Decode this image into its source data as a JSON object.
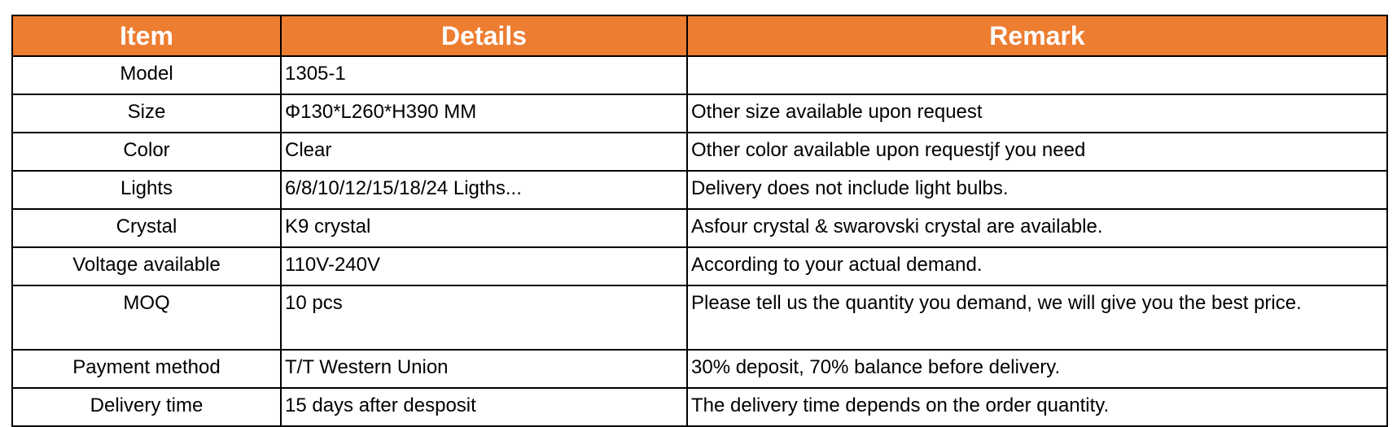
{
  "header": {
    "item": "Item",
    "details": "Details",
    "remark": "Remark"
  },
  "accent_color": "#ED7D31",
  "rows": [
    {
      "item": "Model",
      "details": "1305-1",
      "remark": ""
    },
    {
      "item": "Size",
      "details": "Φ130*L260*H390 MM",
      "remark": "Other size available upon request"
    },
    {
      "item": "Color",
      "details": "Clear",
      "remark": "Other color available upon requestjf you need"
    },
    {
      "item": "Lights",
      "details": "6/8/10/12/15/18/24 Ligths...",
      "remark": "Delivery does not include light bulbs."
    },
    {
      "item": "Crystal",
      "details": "K9 crystal",
      "remark": "Asfour crystal & swarovski crystal are available."
    },
    {
      "item": "Voltage available",
      "details": "110V-240V",
      "remark": "According to your actual demand."
    },
    {
      "item": "MOQ",
      "details": "10 pcs",
      "remark": "Please tell us the quantity you demand, we will give you the best price."
    },
    {
      "item": "Payment method",
      "details": "T/T Western Union",
      "remark": "30% deposit, 70% balance before delivery."
    },
    {
      "item": "Delivery time",
      "details": "15 days after desposit",
      "remark": "The delivery time depends on the order quantity."
    }
  ]
}
